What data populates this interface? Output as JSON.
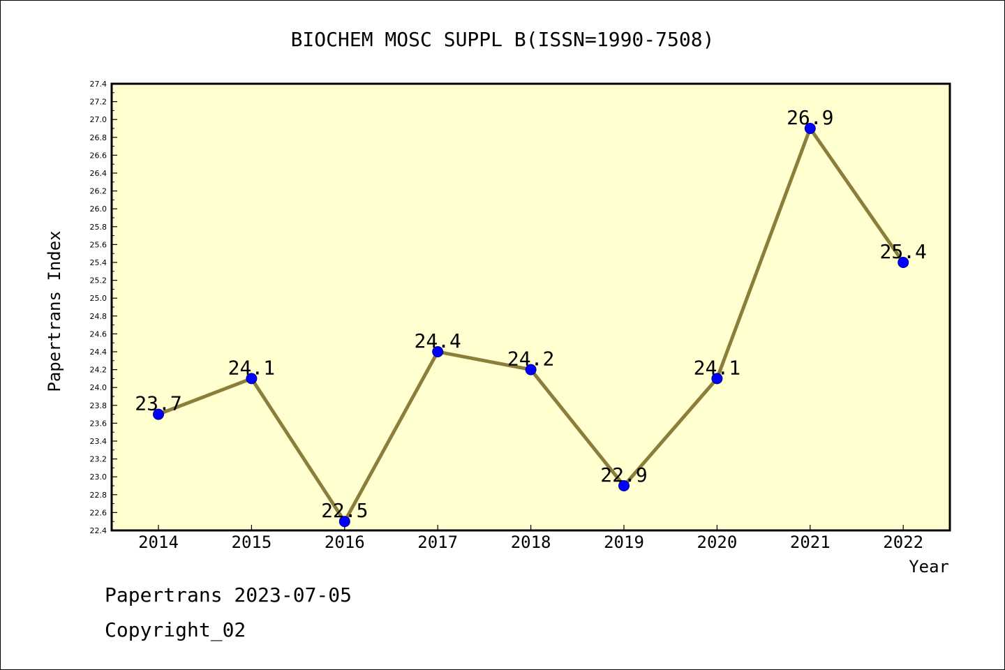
{
  "chart_data": {
    "type": "line",
    "title": "BIOCHEM MOSC SUPPL B(ISSN=1990-7508)",
    "xlabel": "Year",
    "ylabel": "Papertrans Index",
    "categories": [
      "2014",
      "2015",
      "2016",
      "2017",
      "2018",
      "2019",
      "2020",
      "2021",
      "2022"
    ],
    "series": [
      {
        "values": [
          23.7,
          24.1,
          22.5,
          24.4,
          24.2,
          22.9,
          24.1,
          26.9,
          25.4
        ],
        "data_labels": [
          "23.7",
          "24.1",
          "22.5",
          "24.4",
          "24.2",
          "22.9",
          "24.1",
          "26.9",
          "25.4"
        ]
      }
    ],
    "ylim": [
      22.4,
      27.4
    ],
    "y_ticks": [
      "22.4",
      "22.6",
      "22.8",
      "23.0",
      "23.2",
      "23.4",
      "23.6",
      "23.8",
      "24.0",
      "24.2",
      "24.4",
      "24.6",
      "24.8",
      "25.0",
      "25.2",
      "25.4",
      "25.6",
      "25.8",
      "26.0",
      "26.2",
      "26.4",
      "26.6",
      "26.8",
      "27.0",
      "27.2",
      "27.4"
    ],
    "grid": false,
    "legend": "none",
    "colors": {
      "plot_background": "#FFFFD0",
      "line": "#8B7D3A",
      "marker": "#0000FF"
    }
  },
  "footer": {
    "line1": "Papertrans 2023-07-05",
    "line2": "Copyright_02"
  }
}
